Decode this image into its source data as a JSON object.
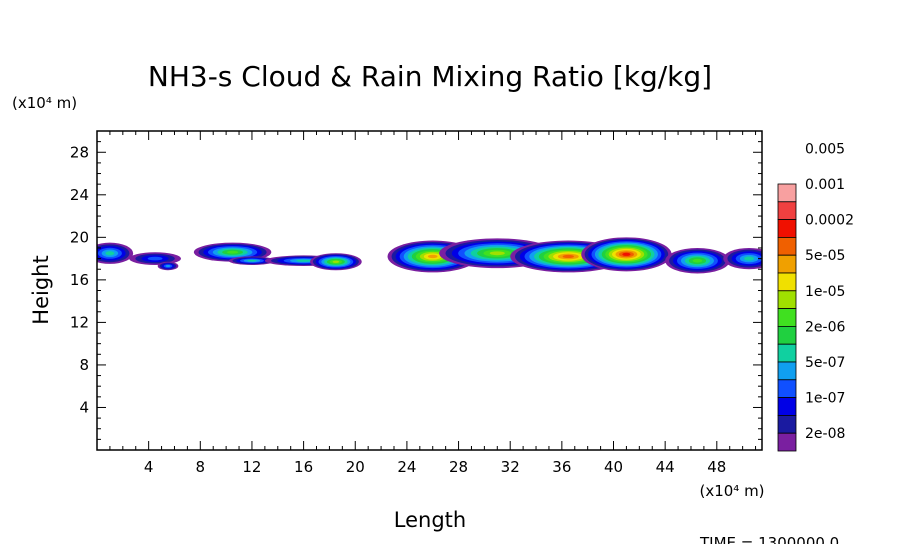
{
  "chart_data": {
    "type": "heatmap",
    "title": "NH3-s Cloud & Rain Mixing Ratio [kg/kg]",
    "xlabel": "Length",
    "ylabel": "Height",
    "x_unit": "(x10⁴ m)",
    "y_unit": "(x10⁴ m)",
    "xlim": [
      0,
      51.5
    ],
    "ylim": [
      0,
      30
    ],
    "x_ticks": [
      "4",
      "8",
      "12",
      "16",
      "20",
      "24",
      "28",
      "32",
      "36",
      "40",
      "44",
      "48"
    ],
    "y_ticks": [
      "4",
      "8",
      "12",
      "16",
      "20",
      "24",
      "28"
    ],
    "legend_levels": [
      "2e-08",
      "1e-07",
      "5e-07",
      "2e-06",
      "1e-05",
      "5e-05",
      "0.0002",
      "0.001",
      "0.005"
    ],
    "legend_colors": [
      "#7a1fa0",
      "#1a1aa0",
      "#0000e6",
      "#1050ff",
      "#109ff0",
      "#10d0a0",
      "#20d040",
      "#40e020",
      "#a0e000",
      "#f0e000",
      "#f0a000",
      "#f06000",
      "#f01000",
      "#f04040",
      "#f8a0a0"
    ],
    "footer": "TIME = 1300000.0",
    "blobs": [
      {
        "cx": 1.0,
        "cy": 18.5,
        "rx": 1.8,
        "ry": 1.0,
        "level": 5
      },
      {
        "cx": 4.5,
        "cy": 18.0,
        "rx": 2.0,
        "ry": 0.6,
        "level": 3
      },
      {
        "cx": 5.5,
        "cy": 17.3,
        "rx": 0.8,
        "ry": 0.4,
        "level": 4
      },
      {
        "cx": 10.5,
        "cy": 18.6,
        "rx": 3.0,
        "ry": 0.9,
        "level": 7
      },
      {
        "cx": 12.0,
        "cy": 17.8,
        "rx": 1.8,
        "ry": 0.4,
        "level": 5
      },
      {
        "cx": 16.0,
        "cy": 17.8,
        "rx": 3.0,
        "ry": 0.5,
        "level": 5
      },
      {
        "cx": 18.5,
        "cy": 17.7,
        "rx": 2.0,
        "ry": 0.8,
        "level": 8
      },
      {
        "cx": 26.0,
        "cy": 18.2,
        "rx": 3.5,
        "ry": 1.5,
        "level": 10
      },
      {
        "cx": 31.0,
        "cy": 18.5,
        "rx": 4.5,
        "ry": 1.4,
        "level": 8
      },
      {
        "cx": 36.5,
        "cy": 18.2,
        "rx": 4.5,
        "ry": 1.5,
        "level": 11
      },
      {
        "cx": 41.0,
        "cy": 18.4,
        "rx": 3.5,
        "ry": 1.6,
        "level": 12
      },
      {
        "cx": 46.5,
        "cy": 17.8,
        "rx": 2.5,
        "ry": 1.2,
        "level": 7
      },
      {
        "cx": 50.5,
        "cy": 18.0,
        "rx": 2.0,
        "ry": 1.0,
        "level": 5
      }
    ]
  }
}
